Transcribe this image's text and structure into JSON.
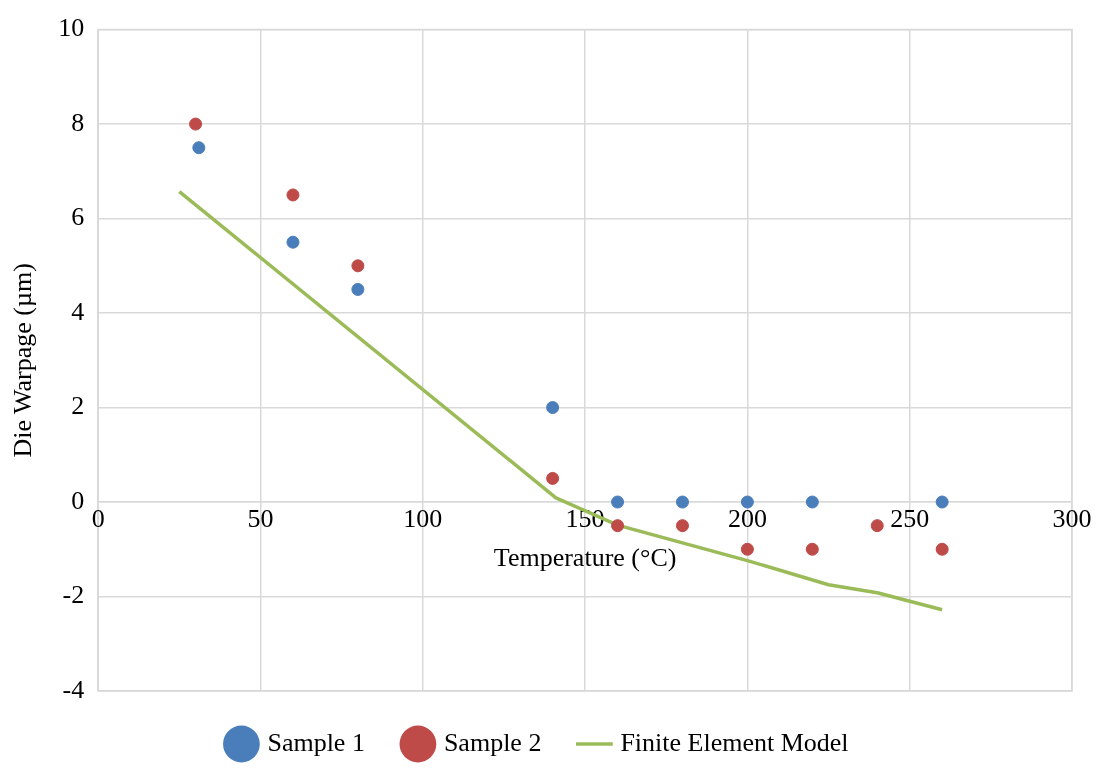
{
  "chart_data": {
    "type": "scatter",
    "xlabel": "Temperature (°C)",
    "ylabel": "Die Warpage (µm)",
    "xlim": [
      0,
      300
    ],
    "xticks": [
      0,
      50,
      100,
      150,
      200,
      250,
      300
    ],
    "ylim": [
      -4,
      10
    ],
    "yticks": [
      -4,
      -2,
      0,
      2,
      4,
      6,
      8,
      10
    ],
    "grid": true,
    "legend": "bottom",
    "marker": "circle",
    "series": [
      {
        "name": "Sample 1",
        "color": "#4a7ebb",
        "x": [
          31,
          60,
          80,
          140,
          160,
          180,
          200,
          220,
          260
        ],
        "values": [
          7.5,
          5.5,
          4.5,
          2,
          0,
          0,
          0,
          0,
          0
        ]
      },
      {
        "name": "Sample 2",
        "color": "#be4b48",
        "x": [
          30,
          60,
          80,
          140,
          160,
          180,
          200,
          220,
          240,
          260
        ],
        "values": [
          8,
          6.5,
          5,
          0.5,
          -0.5,
          -0.5,
          -1,
          -1,
          -0.5,
          -1
        ]
      },
      {
        "name": "Finite Element Model",
        "type": "line",
        "color": "#9bbb59",
        "marker": "none",
        "line_style": "solid",
        "x": [
          25,
          141,
          160,
          200,
          225,
          240,
          260
        ],
        "values": [
          6.57,
          0.09,
          -0.49,
          -1.24,
          -1.75,
          -1.92,
          -2.28
        ]
      }
    ]
  }
}
